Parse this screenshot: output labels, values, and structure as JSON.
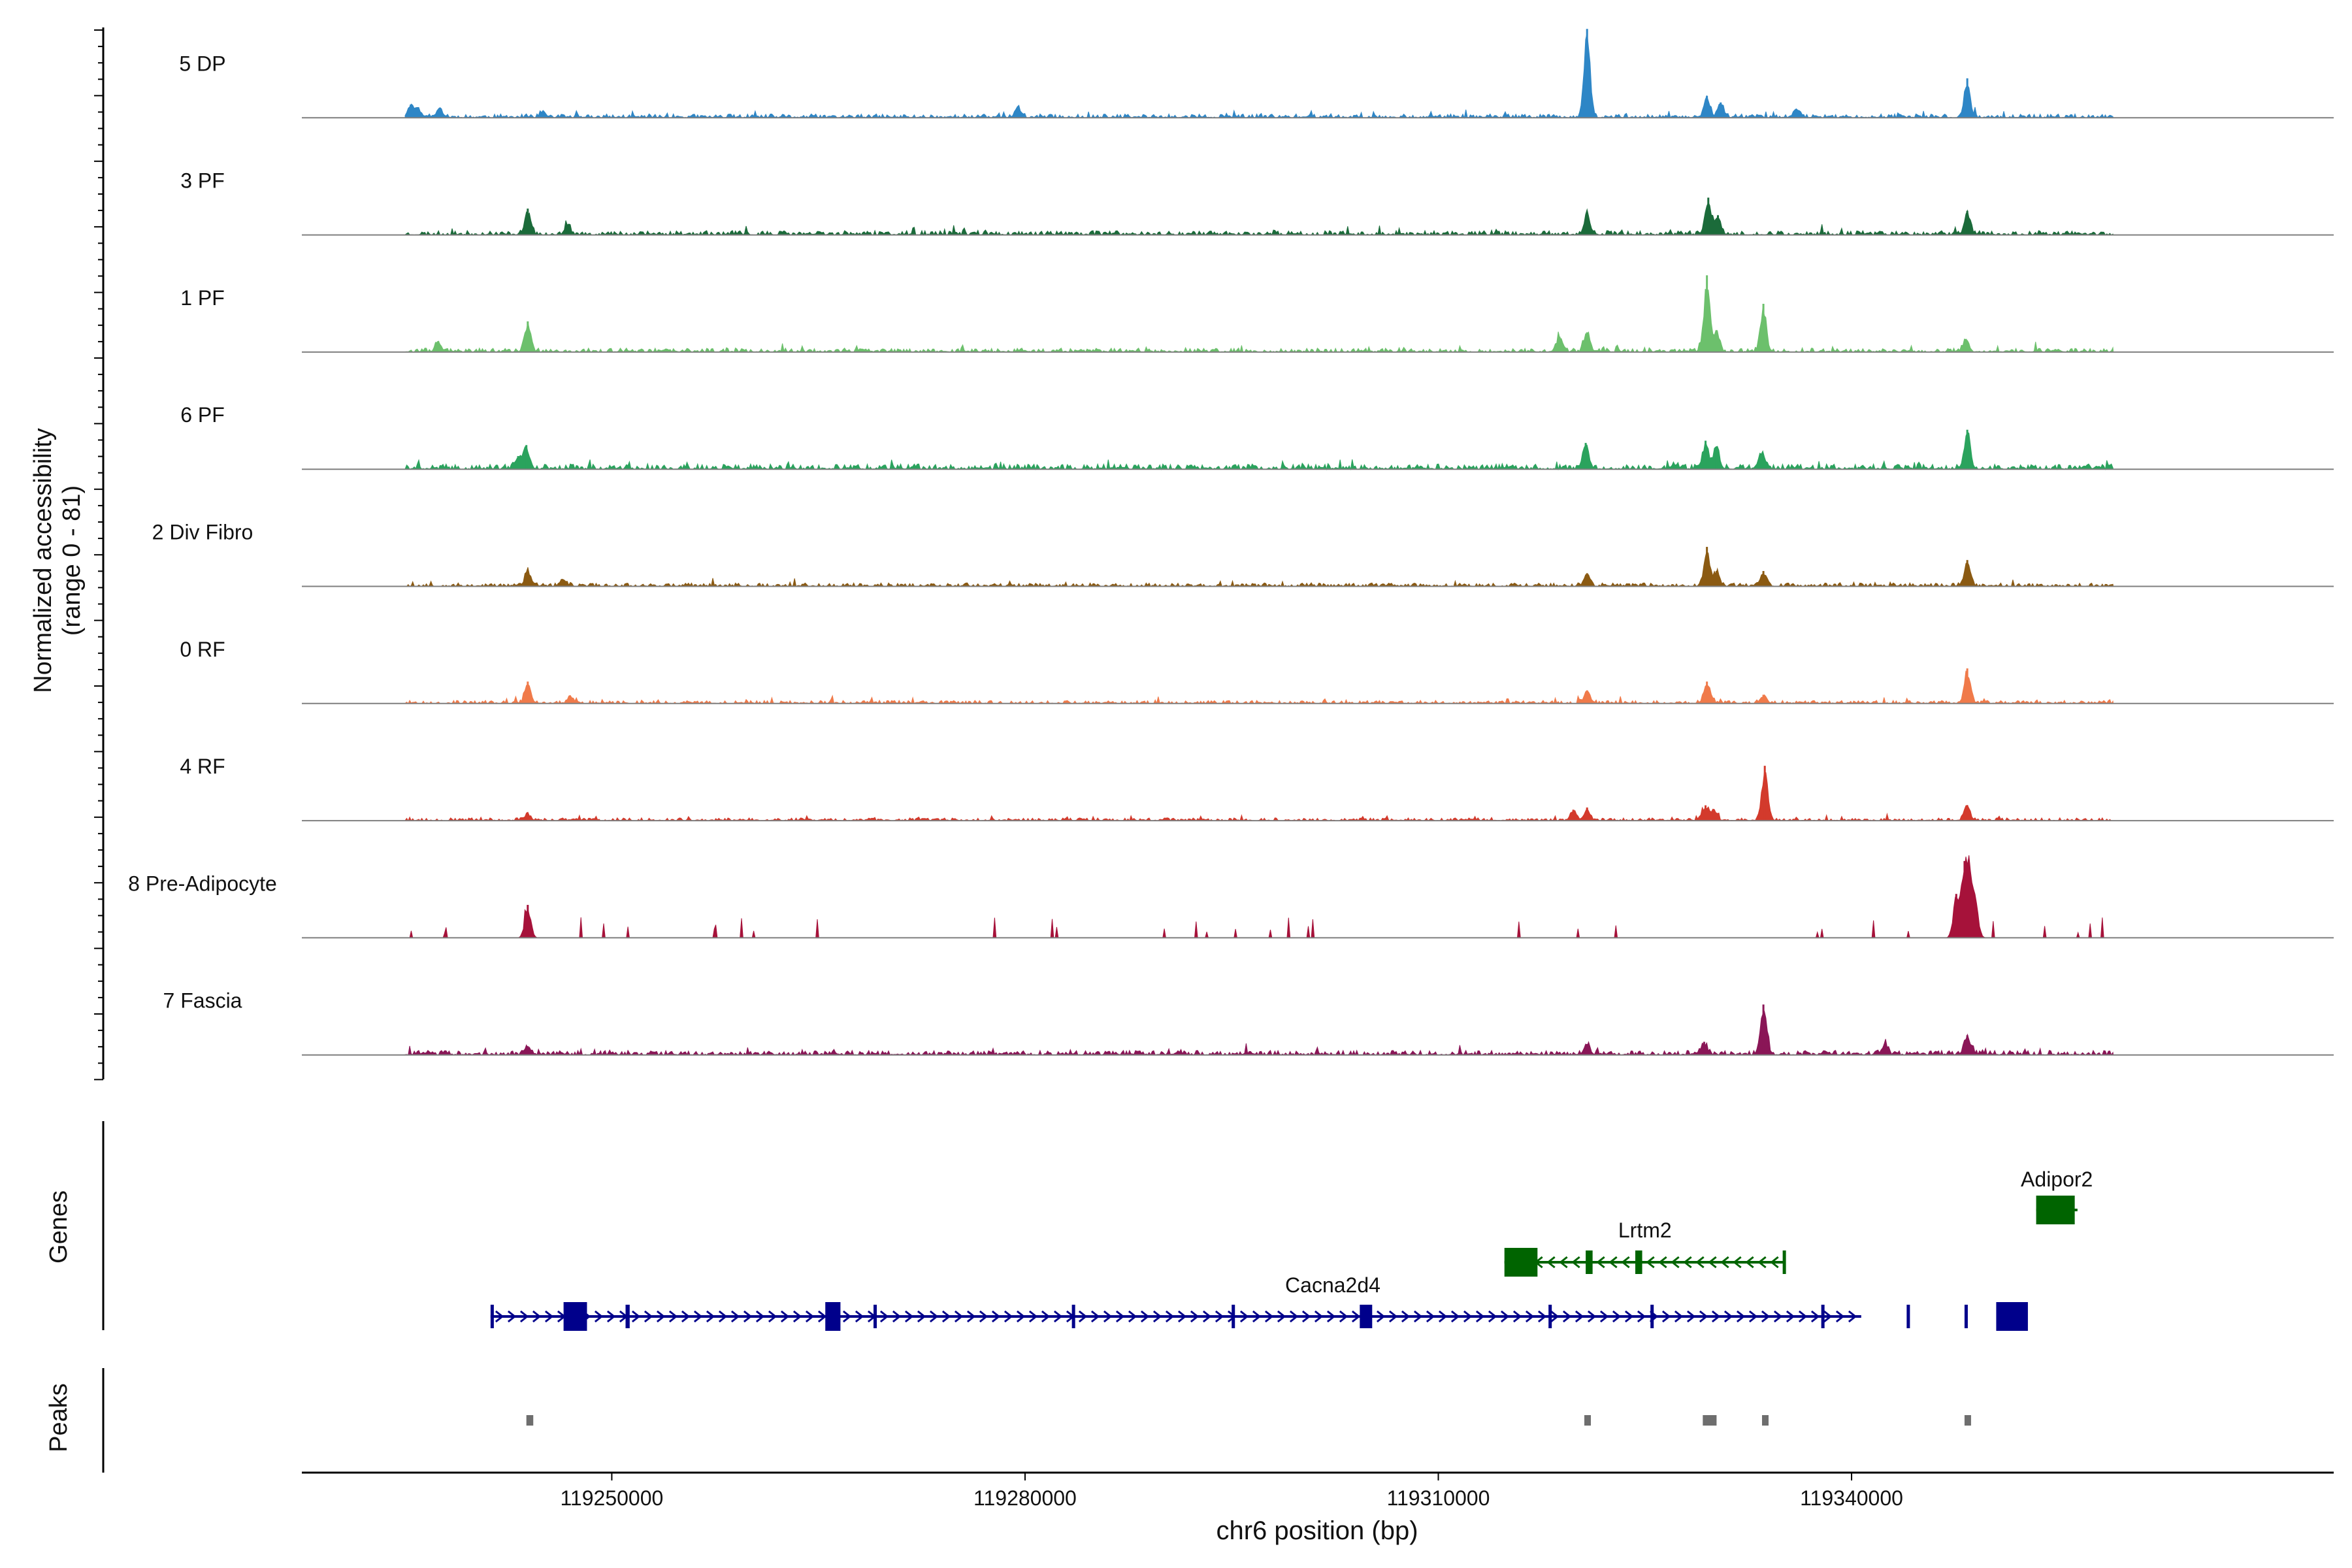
{
  "chart_data": {
    "type": "area",
    "title": "",
    "ylabel": "Normalized accessibility",
    "ylabel_range": "(range 0 - 81)",
    "ylim": [
      0,
      81
    ],
    "xlabel": "chr6 position (bp)",
    "xlim": [
      119227500,
      119375000
    ],
    "x_ticks": [
      119250000,
      119280000,
      119310000,
      119340000
    ],
    "x_tick_labels": [
      "119250000",
      "119280000",
      "119310000",
      "119340000"
    ],
    "tracks": [
      {
        "name": "5 DP",
        "color": "#2e86c6",
        "noise": 2.2,
        "style": "dense",
        "seed": 11,
        "peaks": [
          [
            119235400,
            12
          ],
          [
            119235900,
            8
          ],
          [
            119237500,
            9
          ],
          [
            119245000,
            6
          ],
          [
            119279500,
            10
          ],
          [
            119320800,
            81
          ],
          [
            119329500,
            20
          ],
          [
            119330500,
            14
          ],
          [
            119336000,
            8
          ],
          [
            119348400,
            36
          ]
        ]
      },
      {
        "name": "3 PF",
        "color": "#1b6b3a",
        "noise": 2.5,
        "style": "dense",
        "seed": 23,
        "peaks": [
          [
            119243900,
            24
          ],
          [
            119246800,
            9
          ],
          [
            119320800,
            18
          ],
          [
            119329600,
            34
          ],
          [
            119330300,
            18
          ],
          [
            119348400,
            22
          ]
        ]
      },
      {
        "name": "1 PF",
        "color": "#6cc06c",
        "noise": 2.3,
        "style": "dense",
        "seed": 37,
        "peaks": [
          [
            119237400,
            10
          ],
          [
            119243900,
            28
          ],
          [
            119318800,
            14
          ],
          [
            119320800,
            18
          ],
          [
            119329500,
            70
          ],
          [
            119330200,
            20
          ],
          [
            119333600,
            44
          ],
          [
            119348300,
            12
          ]
        ]
      },
      {
        "name": "6 PF",
        "color": "#2aa35d",
        "noise": 3.0,
        "style": "dense",
        "seed": 41,
        "peaks": [
          [
            119243800,
            22
          ],
          [
            119243200,
            12
          ],
          [
            119320700,
            24
          ],
          [
            119329400,
            26
          ],
          [
            119330200,
            20
          ],
          [
            119333500,
            14
          ],
          [
            119348400,
            36
          ]
        ]
      },
      {
        "name": "2 Div Fibro",
        "color": "#8b5a12",
        "noise": 2.0,
        "style": "dense",
        "seed": 53,
        "peaks": [
          [
            119243900,
            14
          ],
          [
            119246500,
            6
          ],
          [
            119320800,
            12
          ],
          [
            119329500,
            36
          ],
          [
            119330200,
            14
          ],
          [
            119333600,
            14
          ],
          [
            119348400,
            24
          ]
        ]
      },
      {
        "name": "0 RF",
        "color": "#f07a4a",
        "noise": 1.8,
        "style": "dense",
        "seed": 67,
        "peaks": [
          [
            119243900,
            20
          ],
          [
            119247000,
            6
          ],
          [
            119320800,
            12
          ],
          [
            119329500,
            20
          ],
          [
            119333600,
            8
          ],
          [
            119348400,
            32
          ]
        ]
      },
      {
        "name": "4 RF",
        "color": "#d33a2c",
        "noise": 1.6,
        "style": "dense",
        "seed": 79,
        "peaks": [
          [
            119243900,
            6
          ],
          [
            119319800,
            10
          ],
          [
            119320800,
            12
          ],
          [
            119329400,
            14
          ],
          [
            119330000,
            10
          ],
          [
            119333700,
            50
          ],
          [
            119348400,
            14
          ]
        ]
      },
      {
        "name": "8 Pre-Adipocyte",
        "color": "#a6123a",
        "noise": 0.0,
        "style": "sparse",
        "seed": 97,
        "peaks": [
          [
            119243900,
            30
          ],
          [
            119348200,
            70
          ],
          [
            119348600,
            55
          ],
          [
            119347600,
            40
          ],
          [
            119349000,
            30
          ]
        ]
      },
      {
        "name": "7 Fascia",
        "color": "#8a1657",
        "noise": 2.6,
        "style": "dense",
        "seed": 103,
        "peaks": [
          [
            119243900,
            8
          ],
          [
            119320800,
            10
          ],
          [
            119329300,
            12
          ],
          [
            119333600,
            46
          ],
          [
            119342400,
            10
          ],
          [
            119348400,
            18
          ]
        ]
      }
    ],
    "genes": [
      {
        "name": "Cacna2d4",
        "color": "#00008b",
        "start": 119241200,
        "end": 119340700,
        "strand": "+",
        "exons": [
          [
            119241200,
            119241300
          ],
          [
            119246500,
            119248200
          ],
          [
            119251000,
            119251300
          ],
          [
            119265500,
            119266600
          ],
          [
            119269000,
            119269200
          ],
          [
            119283400,
            119283500
          ],
          [
            119295000,
            119295200
          ],
          [
            119304300,
            119305200
          ],
          [
            119318000,
            119318200
          ],
          [
            119325400,
            119325500
          ],
          [
            119337800,
            119338000
          ],
          [
            119344000,
            119344200
          ],
          [
            119348200,
            119348400
          ],
          [
            119350500,
            119352800
          ]
        ]
      },
      {
        "name": "Lrtm2",
        "color": "#006400",
        "start": 119314800,
        "end": 119335200,
        "strand": "-",
        "exons": [
          [
            119314800,
            119317200
          ],
          [
            119320700,
            119321200
          ],
          [
            119324300,
            119324800
          ],
          [
            119335000,
            119335200
          ]
        ]
      },
      {
        "name": "Adipor2",
        "color": "#006400",
        "start": 119353400,
        "end": 119356400,
        "strand": "-",
        "exons": [
          [
            119353400,
            119356200
          ]
        ]
      }
    ],
    "peaks_track": [
      [
        119243800,
        119244300
      ],
      [
        119320600,
        119321000
      ],
      [
        119329200,
        119330200
      ],
      [
        119333500,
        119333900
      ],
      [
        119348200,
        119348600
      ]
    ],
    "panel_labels": {
      "genes": "Genes",
      "peaks": "Peaks"
    }
  }
}
